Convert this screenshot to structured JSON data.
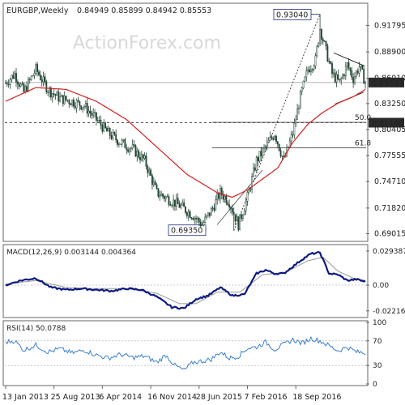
{
  "chart_data": {
    "type": "candlestick",
    "symbol_label": "EURGBP,Weekly",
    "ohlc_label": "0.84949 0.85899 0.84942 0.85553",
    "watermark": "ActionForex.com",
    "main_panel": {
      "ylim": [
        0.6835,
        0.9405
      ],
      "y_ticks": [
        "0.91795",
        "0.88900",
        "0.86010",
        "0.83250",
        "0.80405",
        "0.77555",
        "0.74710",
        "0.71820",
        "0.69015"
      ],
      "y_tick_values": [
        0.91795,
        0.889,
        0.8601,
        0.8325,
        0.80405,
        0.77555,
        0.7471,
        0.7182,
        0.69015
      ],
      "current_price": "0.85553",
      "level_price": "0.81160",
      "annotations": {
        "high": "0.93040",
        "low": "0.69350",
        "fib50": "50.0",
        "fib618": "61.8"
      },
      "anchors": [
        {
          "t": 0,
          "p": 0.855
        },
        {
          "t": 6,
          "p": 0.865
        },
        {
          "t": 12,
          "p": 0.845
        },
        {
          "t": 20,
          "p": 0.87
        },
        {
          "t": 28,
          "p": 0.848
        },
        {
          "t": 36,
          "p": 0.838
        },
        {
          "t": 44,
          "p": 0.835
        },
        {
          "t": 52,
          "p": 0.83
        },
        {
          "t": 60,
          "p": 0.815
        },
        {
          "t": 68,
          "p": 0.8
        },
        {
          "t": 76,
          "p": 0.79
        },
        {
          "t": 84,
          "p": 0.783
        },
        {
          "t": 92,
          "p": 0.77
        },
        {
          "t": 100,
          "p": 0.735
        },
        {
          "t": 108,
          "p": 0.728
        },
        {
          "t": 116,
          "p": 0.72
        },
        {
          "t": 124,
          "p": 0.71
        },
        {
          "t": 130,
          "p": 0.7
        },
        {
          "t": 136,
          "p": 0.715
        },
        {
          "t": 142,
          "p": 0.735
        },
        {
          "t": 148,
          "p": 0.725
        },
        {
          "t": 154,
          "p": 0.7
        },
        {
          "t": 160,
          "p": 0.73
        },
        {
          "t": 166,
          "p": 0.77
        },
        {
          "t": 172,
          "p": 0.785
        },
        {
          "t": 178,
          "p": 0.8
        },
        {
          "t": 184,
          "p": 0.77
        },
        {
          "t": 190,
          "p": 0.8
        },
        {
          "t": 195,
          "p": 0.84
        },
        {
          "t": 200,
          "p": 0.87
        },
        {
          "t": 205,
          "p": 0.88
        },
        {
          "t": 208,
          "p": 0.915
        },
        {
          "t": 212,
          "p": 0.89
        },
        {
          "t": 216,
          "p": 0.865
        },
        {
          "t": 221,
          "p": 0.855
        },
        {
          "t": 226,
          "p": 0.875
        },
        {
          "t": 230,
          "p": 0.86
        },
        {
          "t": 234,
          "p": 0.873
        },
        {
          "t": 238,
          "p": 0.856
        }
      ],
      "ma_anchors": [
        {
          "t": 0,
          "p": 0.835
        },
        {
          "t": 20,
          "p": 0.85
        },
        {
          "t": 40,
          "p": 0.848
        },
        {
          "t": 60,
          "p": 0.835
        },
        {
          "t": 80,
          "p": 0.815
        },
        {
          "t": 100,
          "p": 0.785
        },
        {
          "t": 120,
          "p": 0.755
        },
        {
          "t": 140,
          "p": 0.735
        },
        {
          "t": 150,
          "p": 0.73
        },
        {
          "t": 160,
          "p": 0.738
        },
        {
          "t": 170,
          "p": 0.75
        },
        {
          "t": 180,
          "p": 0.762
        },
        {
          "t": 190,
          "p": 0.79
        },
        {
          "t": 200,
          "p": 0.81
        },
        {
          "t": 210,
          "p": 0.823
        },
        {
          "t": 220,
          "p": 0.833
        },
        {
          "t": 230,
          "p": 0.84
        },
        {
          "t": 238,
          "p": 0.848
        }
      ]
    },
    "macd_panel": {
      "label": "MACD(12,26,9) 0.003144 0.004364",
      "ylim": [
        -0.0265,
        0.0335
      ],
      "y_ticks": [
        "0.029387",
        "0.00",
        "-0.022161"
      ],
      "y_tick_values": [
        0.029387,
        0.0,
        -0.022161
      ],
      "anchors": [
        {
          "t": 0,
          "v": 0.0
        },
        {
          "t": 10,
          "v": 0.004
        },
        {
          "t": 20,
          "v": 0.006
        },
        {
          "t": 30,
          "v": -0.002
        },
        {
          "t": 40,
          "v": -0.004
        },
        {
          "t": 50,
          "v": -0.003
        },
        {
          "t": 60,
          "v": -0.004
        },
        {
          "t": 70,
          "v": -0.005
        },
        {
          "t": 80,
          "v": -0.003
        },
        {
          "t": 90,
          "v": -0.004
        },
        {
          "t": 100,
          "v": -0.01
        },
        {
          "t": 110,
          "v": -0.019
        },
        {
          "t": 118,
          "v": -0.02
        },
        {
          "t": 126,
          "v": -0.012
        },
        {
          "t": 134,
          "v": -0.009
        },
        {
          "t": 142,
          "v": -0.002
        },
        {
          "t": 150,
          "v": -0.009
        },
        {
          "t": 158,
          "v": -0.008
        },
        {
          "t": 166,
          "v": 0.01
        },
        {
          "t": 172,
          "v": 0.013
        },
        {
          "t": 178,
          "v": 0.01
        },
        {
          "t": 184,
          "v": 0.01
        },
        {
          "t": 190,
          "v": 0.016
        },
        {
          "t": 196,
          "v": 0.022
        },
        {
          "t": 202,
          "v": 0.027
        },
        {
          "t": 208,
          "v": 0.028
        },
        {
          "t": 214,
          "v": 0.01
        },
        {
          "t": 220,
          "v": 0.009
        },
        {
          "t": 226,
          "v": 0.004
        },
        {
          "t": 232,
          "v": 0.005
        },
        {
          "t": 238,
          "v": 0.003
        }
      ],
      "signal_anchors": [
        {
          "t": 0,
          "v": 0.001
        },
        {
          "t": 20,
          "v": 0.004
        },
        {
          "t": 40,
          "v": -0.002
        },
        {
          "t": 60,
          "v": -0.003
        },
        {
          "t": 80,
          "v": -0.003
        },
        {
          "t": 100,
          "v": -0.007
        },
        {
          "t": 115,
          "v": -0.016
        },
        {
          "t": 126,
          "v": -0.016
        },
        {
          "t": 140,
          "v": -0.006
        },
        {
          "t": 155,
          "v": -0.006
        },
        {
          "t": 170,
          "v": 0.009
        },
        {
          "t": 185,
          "v": 0.011
        },
        {
          "t": 200,
          "v": 0.021
        },
        {
          "t": 210,
          "v": 0.024
        },
        {
          "t": 220,
          "v": 0.012
        },
        {
          "t": 230,
          "v": 0.006
        },
        {
          "t": 238,
          "v": 0.004
        }
      ]
    },
    "rsi_panel": {
      "label": "RSI(14) 50.0788",
      "ylim": [
        0,
        100
      ],
      "y_ticks": [
        "100",
        "70",
        "30",
        "0"
      ],
      "y_tick_values": [
        100,
        70,
        30,
        0
      ],
      "anchors": [
        {
          "t": 0,
          "v": 68
        },
        {
          "t": 6,
          "v": 70
        },
        {
          "t": 12,
          "v": 55
        },
        {
          "t": 20,
          "v": 63
        },
        {
          "t": 28,
          "v": 52
        },
        {
          "t": 36,
          "v": 57
        },
        {
          "t": 44,
          "v": 50
        },
        {
          "t": 52,
          "v": 55
        },
        {
          "t": 60,
          "v": 47
        },
        {
          "t": 68,
          "v": 42
        },
        {
          "t": 76,
          "v": 48
        },
        {
          "t": 84,
          "v": 43
        },
        {
          "t": 92,
          "v": 45
        },
        {
          "t": 100,
          "v": 35
        },
        {
          "t": 106,
          "v": 47
        },
        {
          "t": 112,
          "v": 30
        },
        {
          "t": 118,
          "v": 22
        },
        {
          "t": 124,
          "v": 35
        },
        {
          "t": 130,
          "v": 37
        },
        {
          "t": 136,
          "v": 40
        },
        {
          "t": 142,
          "v": 52
        },
        {
          "t": 148,
          "v": 42
        },
        {
          "t": 154,
          "v": 45
        },
        {
          "t": 160,
          "v": 58
        },
        {
          "t": 166,
          "v": 60
        },
        {
          "t": 172,
          "v": 68
        },
        {
          "t": 178,
          "v": 56
        },
        {
          "t": 184,
          "v": 64
        },
        {
          "t": 190,
          "v": 72
        },
        {
          "t": 196,
          "v": 66
        },
        {
          "t": 202,
          "v": 74
        },
        {
          "t": 208,
          "v": 70
        },
        {
          "t": 214,
          "v": 62
        },
        {
          "t": 220,
          "v": 54
        },
        {
          "t": 226,
          "v": 60
        },
        {
          "t": 232,
          "v": 52
        },
        {
          "t": 238,
          "v": 50
        }
      ]
    },
    "x_tick_labels": [
      "13 Jan 2013",
      "25 Aug 2013",
      "6 Apr 2014",
      "16 Nov 2014",
      "28 Jun 2015",
      "7 Feb 2016",
      "18 Sep 2016"
    ],
    "x_tick_bars": [
      0,
      32,
      64,
      96,
      128,
      160,
      192
    ],
    "bar_count": 239,
    "colors": {
      "candle": "#224433",
      "ma": "#d42020",
      "macd": "#0d1a80",
      "signal": "#999999",
      "rsi": "#3a7fcf",
      "current_price_box": "#2a2a2a",
      "annotation_text": "#1a2a7a",
      "dashed": "#333333"
    }
  }
}
